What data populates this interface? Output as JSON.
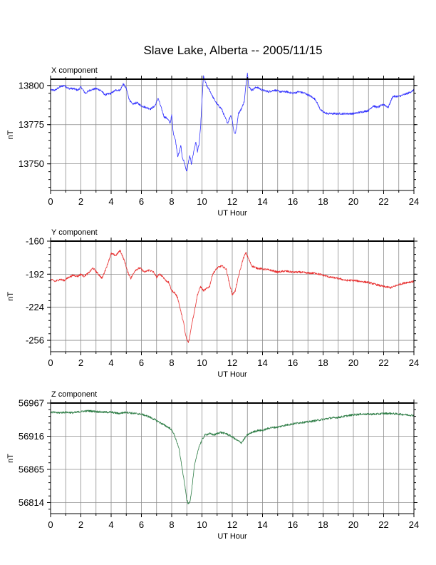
{
  "figure": {
    "title": "Slave Lake, Alberta -- 2005/11/15"
  },
  "colors": {
    "x_series": "#3333ff",
    "y_series": "#e83030",
    "z_series": "#2e7d46",
    "grid": "#8c8c8c"
  },
  "chart_data": [
    {
      "type": "line",
      "title": "X component",
      "xlabel": "UT Hour",
      "ylabel": "nT",
      "xlim": [
        0,
        24
      ],
      "ylim": [
        13733,
        13804
      ],
      "grid": true,
      "x_ticks": [
        0,
        2,
        4,
        6,
        8,
        10,
        12,
        14,
        16,
        18,
        20,
        22,
        24
      ],
      "y_ticks": [
        13750,
        13775,
        13800
      ],
      "series": [
        {
          "x": [
            0,
            0.3,
            0.6,
            0.9,
            1.2,
            1.5,
            1.8,
            2.0,
            2.3,
            2.6,
            3.0,
            3.3,
            3.6,
            4.0,
            4.3,
            4.6,
            4.8,
            5.0,
            5.2,
            5.4,
            5.7,
            6.0,
            6.3,
            6.6,
            6.9,
            7.1,
            7.3,
            7.5,
            7.7,
            7.9,
            8.0,
            8.1,
            8.25,
            8.4,
            8.5,
            8.6,
            8.7,
            8.8,
            8.9,
            9.0,
            9.1,
            9.2,
            9.3,
            9.4,
            9.5,
            9.6,
            9.7,
            9.8,
            9.9,
            10.0,
            10.1,
            10.3,
            10.5,
            10.7,
            11.0,
            11.3,
            11.5,
            11.7,
            11.9,
            12.0,
            12.1,
            12.2,
            12.3,
            12.4,
            12.6,
            12.8,
            12.9,
            13.0,
            13.1,
            13.3,
            13.6,
            14.0,
            14.4,
            14.8,
            15.2,
            15.6,
            16.0,
            16.4,
            16.8,
            17.2,
            17.5,
            17.8,
            18.0,
            18.3,
            18.6,
            19.0,
            19.5,
            20.0,
            20.5,
            21.0,
            21.3,
            21.6,
            22.0,
            22.3,
            22.6,
            23.0,
            23.3,
            23.6,
            24.0
          ],
          "values": [
            13797,
            13797,
            13799,
            13800,
            13798,
            13798,
            13797,
            13799,
            13795,
            13797,
            13798,
            13797,
            13794,
            13795,
            13797,
            13797,
            13801,
            13798,
            13791,
            13788,
            13789,
            13787,
            13786,
            13785,
            13787,
            13792,
            13786,
            13780,
            13779,
            13776,
            13781,
            13770,
            13765,
            13755,
            13757,
            13762,
            13754,
            13752,
            13748,
            13745,
            13751,
            13755,
            13750,
            13755,
            13760,
            13764,
            13758,
            13762,
            13772,
            13790,
            13806,
            13800,
            13797,
            13793,
            13788,
            13785,
            13780,
            13776,
            13781,
            13778,
            13771,
            13769,
            13774,
            13782,
            13785,
            13790,
            13800,
            13808,
            13799,
            13797,
            13799,
            13797,
            13796,
            13797,
            13796,
            13796,
            13795,
            13796,
            13795,
            13793,
            13791,
            13785,
            13783,
            13782,
            13782,
            13782,
            13782,
            13782,
            13783,
            13784,
            13787,
            13786,
            13788,
            13786,
            13793,
            13793,
            13794,
            13795,
            13797
          ]
        }
      ]
    },
    {
      "type": "line",
      "title": "Y component",
      "xlabel": "UT Hour",
      "ylabel": "nT",
      "xlim": [
        0,
        24
      ],
      "ylim": [
        -267,
        -160
      ],
      "grid": true,
      "x_ticks": [
        0,
        2,
        4,
        6,
        8,
        10,
        12,
        14,
        16,
        18,
        20,
        22,
        24
      ],
      "y_ticks": [
        -160,
        -192,
        -224,
        -256
      ],
      "series": [
        {
          "x": [
            0,
            0.3,
            0.6,
            0.9,
            1.2,
            1.5,
            1.8,
            2.0,
            2.2,
            2.5,
            2.8,
            3.1,
            3.4,
            3.7,
            4.0,
            4.3,
            4.6,
            4.9,
            5.1,
            5.3,
            5.6,
            5.9,
            6.2,
            6.5,
            6.8,
            7.0,
            7.2,
            7.4,
            7.6,
            7.8,
            8.0,
            8.2,
            8.4,
            8.6,
            8.8,
            8.9,
            9.0,
            9.1,
            9.2,
            9.3,
            9.5,
            9.7,
            9.9,
            10.1,
            10.3,
            10.5,
            10.7,
            11.0,
            11.3,
            11.6,
            11.8,
            12.0,
            12.2,
            12.4,
            12.7,
            12.9,
            13.1,
            13.3,
            13.6,
            14.0,
            14.5,
            15.0,
            15.5,
            16.0,
            16.5,
            17.0,
            17.5,
            18.0,
            18.5,
            19.0,
            19.5,
            20.0,
            20.5,
            21.0,
            21.5,
            22.0,
            22.5,
            23.0,
            23.5,
            24.0
          ],
          "values": [
            -197,
            -199,
            -197,
            -198,
            -195,
            -193,
            -194,
            -192,
            -194,
            -191,
            -186,
            -191,
            -196,
            -185,
            -172,
            -174,
            -169,
            -180,
            -190,
            -196,
            -188,
            -186,
            -190,
            -188,
            -190,
            -195,
            -192,
            -194,
            -198,
            -200,
            -208,
            -210,
            -215,
            -228,
            -240,
            -250,
            -255,
            -258,
            -252,
            -242,
            -228,
            -212,
            -204,
            -208,
            -206,
            -204,
            -192,
            -186,
            -184,
            -187,
            -200,
            -212,
            -208,
            -195,
            -178,
            -171,
            -178,
            -184,
            -186,
            -187,
            -188,
            -190,
            -189,
            -190,
            -190,
            -191,
            -191,
            -193,
            -195,
            -196,
            -198,
            -198,
            -199,
            -200,
            -202,
            -204,
            -205,
            -202,
            -200,
            -199
          ]
        }
      ]
    },
    {
      "type": "line",
      "title": "Z component",
      "xlabel": "UT Hour",
      "ylabel": "nT",
      "xlim": [
        0,
        24
      ],
      "ylim": [
        56797,
        56967
      ],
      "grid": true,
      "x_ticks": [
        0,
        2,
        4,
        6,
        8,
        10,
        12,
        14,
        16,
        18,
        20,
        22,
        24
      ],
      "y_ticks": [
        56967,
        56916,
        56865,
        56814
      ],
      "series": [
        {
          "x": [
            0,
            0.5,
            1.0,
            1.5,
            2.0,
            2.5,
            3.0,
            3.5,
            4.0,
            4.5,
            5.0,
            5.5,
            6.0,
            6.5,
            7.0,
            7.3,
            7.6,
            7.9,
            8.1,
            8.3,
            8.5,
            8.6,
            8.7,
            8.8,
            8.9,
            9.0,
            9.1,
            9.2,
            9.3,
            9.4,
            9.5,
            9.6,
            9.7,
            9.8,
            10.0,
            10.2,
            10.5,
            10.8,
            11.2,
            11.6,
            12.0,
            12.3,
            12.6,
            12.8,
            13.0,
            13.3,
            13.7,
            14.0,
            14.5,
            15.0,
            15.5,
            16.0,
            16.5,
            17.0,
            17.5,
            18.0,
            18.5,
            19.0,
            19.5,
            20.0,
            20.5,
            21.0,
            21.5,
            22.0,
            22.5,
            23.0,
            23.5,
            24.0
          ],
          "values": [
            56953,
            56952,
            56953,
            56952,
            56954,
            56955,
            56954,
            56953,
            56953,
            56951,
            56953,
            56951,
            56950,
            56946,
            56940,
            56936,
            56932,
            56928,
            56922,
            56910,
            56895,
            56880,
            56865,
            56850,
            56835,
            56818,
            56812,
            56815,
            56830,
            56850,
            56870,
            56880,
            56890,
            56900,
            56910,
            56918,
            56920,
            56918,
            56922,
            56920,
            56915,
            56910,
            56906,
            56912,
            56918,
            56922,
            56925,
            56925,
            56929,
            56930,
            56933,
            56935,
            56937,
            56938,
            56940,
            56942,
            56944,
            56945,
            56947,
            56949,
            56950,
            56950,
            56950,
            56951,
            56951,
            56950,
            56949,
            56948
          ]
        }
      ]
    }
  ]
}
